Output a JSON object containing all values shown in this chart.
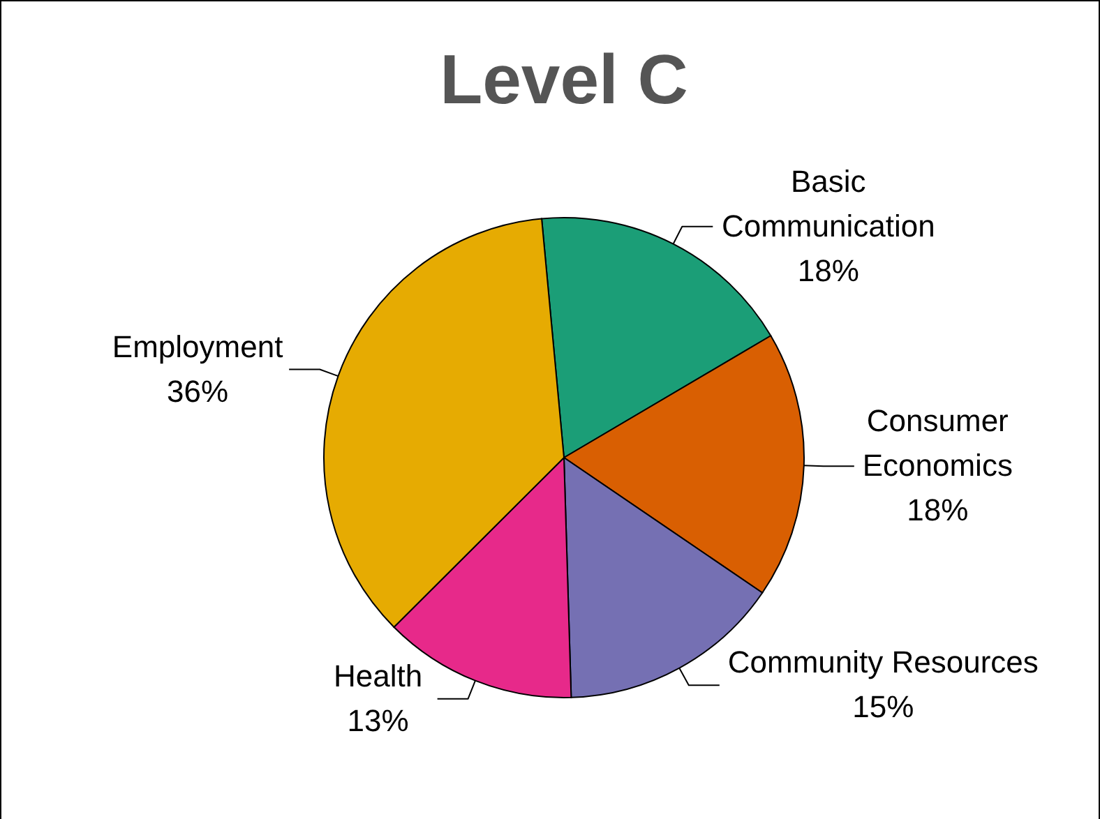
{
  "chart_data": {
    "type": "pie",
    "title": "Level C",
    "categories": [
      "Basic Communication",
      "Consumer Economics",
      "Community Resources",
      "Health",
      "Employment"
    ],
    "values": [
      18,
      18,
      15,
      13,
      36
    ],
    "colors": [
      "#1b9e77",
      "#d95f02",
      "#7570b3",
      "#e7298a",
      "#e6ab02"
    ],
    "value_labels": [
      "18%",
      "18%",
      "15%",
      "13%",
      "36%"
    ]
  }
}
